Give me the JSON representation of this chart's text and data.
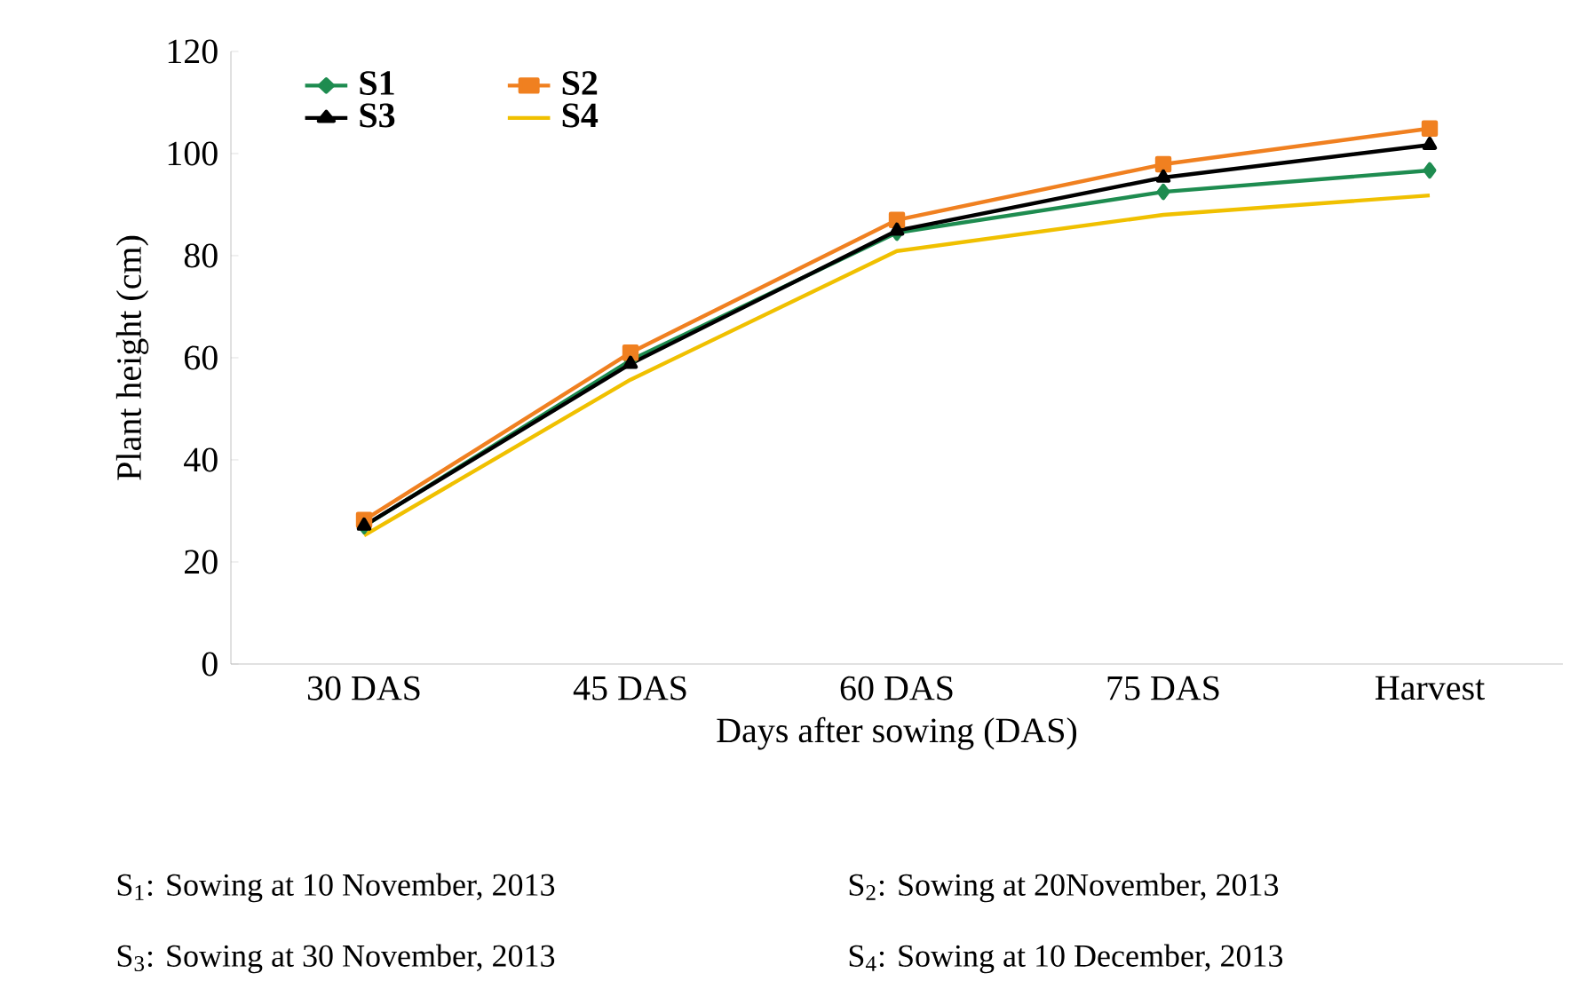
{
  "chart_data": {
    "type": "line",
    "xlabel": "Days after  sowing (DAS)",
    "ylabel": "Plant height (cm)",
    "categories": [
      "30 DAS",
      "45 DAS",
      "60 DAS",
      "75 DAS",
      "Harvest"
    ],
    "series": [
      {
        "name": "S1",
        "color": "#1e8c50",
        "marker": "diamond",
        "values": [
          27,
          59.5,
          84.5,
          92.5,
          96.7
        ]
      },
      {
        "name": "S2",
        "color": "#f08020",
        "marker": "square",
        "values": [
          28.2,
          61,
          87,
          97.9,
          104.9
        ]
      },
      {
        "name": "S3",
        "color": "#000000",
        "marker": "triangle",
        "values": [
          27.1,
          58.8,
          84.9,
          95.3,
          101.7
        ]
      },
      {
        "name": "S4",
        "color": "#f0c000",
        "marker": "none",
        "values": [
          25.2,
          55.7,
          80.9,
          88,
          91.8
        ]
      }
    ],
    "ylim": [
      0,
      120
    ],
    "yticks": [
      0,
      20,
      40,
      60,
      80,
      100,
      120
    ],
    "legend": "top left",
    "grid": false,
    "annotations": [
      "S$_{1}$: Sowing at 10 November, 2013",
      "S$_{2}$: Sowing at 20November, 2013",
      "S$_{3}$: Sowing at 30 November, 2013",
      "S$_{4}$: Sowing at 10 December, 2013"
    ]
  }
}
